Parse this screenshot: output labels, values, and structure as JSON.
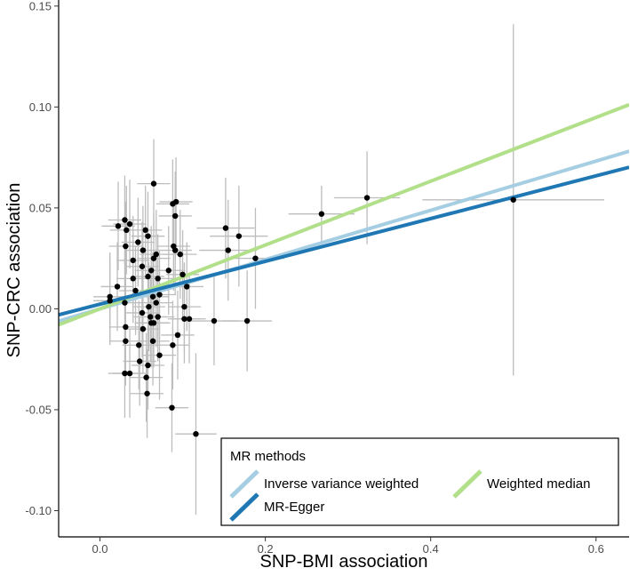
{
  "chart_data": {
    "type": "scatter",
    "xlabel": "SNP-BMI association",
    "ylabel": "SNP-CRC association",
    "xlim": [
      -0.05,
      0.64
    ],
    "ylim": [
      -0.113,
      0.153
    ],
    "x_ticks": [
      0.0,
      0.2,
      0.4,
      0.6
    ],
    "x_tick_labels": [
      "0.0",
      "0.2",
      "0.4",
      "0.6"
    ],
    "y_ticks": [
      -0.1,
      -0.05,
      0.0,
      0.05,
      0.1,
      0.15
    ],
    "y_tick_labels": [
      "-0.10",
      "-0.05",
      "0.00",
      "0.05",
      "0.10",
      "0.15"
    ],
    "grid": false,
    "legend": {
      "title": "MR methods",
      "placement": "bottom-right",
      "entries": [
        {
          "label": "Inverse variance weighted",
          "color": "#a6cee3"
        },
        {
          "label": "Weighted median",
          "color": "#b2df8a"
        },
        {
          "label": "MR-Egger",
          "color": "#1f78b4"
        }
      ]
    },
    "lines": [
      {
        "name": "Inverse variance weighted",
        "color": "#a6cee3",
        "intercept": 0.0,
        "slope": 0.122
      },
      {
        "name": "Weighted median",
        "color": "#b2df8a",
        "intercept": 0.0,
        "slope": 0.158
      },
      {
        "name": "MR-Egger",
        "color": "#1f78b4",
        "intercept": 0.0023,
        "slope": 0.106
      }
    ],
    "point_color": "#000000",
    "errorbar_color": "#bdbdbd",
    "points": [
      {
        "x": 0.065,
        "y": 0.062,
        "xe": 0.02,
        "ye": 0.022
      },
      {
        "x": 0.092,
        "y": 0.053,
        "xe": 0.02,
        "ye": 0.022
      },
      {
        "x": 0.088,
        "y": 0.052,
        "xe": 0.02,
        "ye": 0.022
      },
      {
        "x": 0.091,
        "y": 0.046,
        "xe": 0.02,
        "ye": 0.022
      },
      {
        "x": 0.022,
        "y": 0.041,
        "xe": 0.02,
        "ye": 0.022
      },
      {
        "x": 0.03,
        "y": 0.044,
        "xe": 0.02,
        "ye": 0.022
      },
      {
        "x": 0.036,
        "y": 0.042,
        "xe": 0.02,
        "ye": 0.022
      },
      {
        "x": 0.032,
        "y": 0.039,
        "xe": 0.02,
        "ye": 0.022
      },
      {
        "x": 0.055,
        "y": 0.039,
        "xe": 0.02,
        "ye": 0.022
      },
      {
        "x": 0.058,
        "y": 0.036,
        "xe": 0.02,
        "ye": 0.022
      },
      {
        "x": 0.031,
        "y": 0.031,
        "xe": 0.02,
        "ye": 0.022
      },
      {
        "x": 0.046,
        "y": 0.033,
        "xe": 0.02,
        "ye": 0.022
      },
      {
        "x": 0.052,
        "y": 0.029,
        "xe": 0.02,
        "ye": 0.022
      },
      {
        "x": 0.089,
        "y": 0.031,
        "xe": 0.02,
        "ye": 0.022
      },
      {
        "x": 0.091,
        "y": 0.029,
        "xe": 0.02,
        "ye": 0.022
      },
      {
        "x": 0.068,
        "y": 0.027,
        "xe": 0.02,
        "ye": 0.022
      },
      {
        "x": 0.065,
        "y": 0.025,
        "xe": 0.02,
        "ye": 0.022
      },
      {
        "x": 0.097,
        "y": 0.027,
        "xe": 0.02,
        "ye": 0.022
      },
      {
        "x": 0.04,
        "y": 0.024,
        "xe": 0.02,
        "ye": 0.022
      },
      {
        "x": 0.051,
        "y": 0.021,
        "xe": 0.02,
        "ye": 0.022
      },
      {
        "x": 0.083,
        "y": 0.019,
        "xe": 0.02,
        "ye": 0.022
      },
      {
        "x": 0.062,
        "y": 0.019,
        "xe": 0.02,
        "ye": 0.022
      },
      {
        "x": 0.058,
        "y": 0.016,
        "xe": 0.02,
        "ye": 0.022
      },
      {
        "x": 0.1,
        "y": 0.017,
        "xe": 0.02,
        "ye": 0.022
      },
      {
        "x": 0.07,
        "y": 0.015,
        "xe": 0.02,
        "ye": 0.022
      },
      {
        "x": 0.04,
        "y": 0.015,
        "xe": 0.02,
        "ye": 0.022
      },
      {
        "x": 0.105,
        "y": 0.011,
        "xe": 0.02,
        "ye": 0.022
      },
      {
        "x": 0.021,
        "y": 0.011,
        "xe": 0.02,
        "ye": 0.022
      },
      {
        "x": 0.043,
        "y": 0.009,
        "xe": 0.02,
        "ye": 0.022
      },
      {
        "x": 0.072,
        "y": 0.007,
        "xe": 0.02,
        "ye": 0.022
      },
      {
        "x": 0.064,
        "y": 0.006,
        "xe": 0.02,
        "ye": 0.022
      },
      {
        "x": 0.012,
        "y": 0.006,
        "xe": 0.02,
        "ye": 0.022
      },
      {
        "x": 0.012,
        "y": 0.004,
        "xe": 0.02,
        "ye": 0.022
      },
      {
        "x": 0.068,
        "y": 0.003,
        "xe": 0.02,
        "ye": 0.022
      },
      {
        "x": 0.03,
        "y": 0.003,
        "xe": 0.02,
        "ye": 0.022
      },
      {
        "x": 0.059,
        "y": 0.001,
        "xe": 0.02,
        "ye": 0.022
      },
      {
        "x": 0.102,
        "y": 0.001,
        "xe": 0.02,
        "ye": 0.022
      },
      {
        "x": 0.051,
        "y": -0.002,
        "xe": 0.02,
        "ye": 0.022
      },
      {
        "x": 0.061,
        "y": -0.004,
        "xe": 0.02,
        "ye": 0.022
      },
      {
        "x": 0.07,
        "y": -0.004,
        "xe": 0.02,
        "ye": 0.022
      },
      {
        "x": 0.102,
        "y": -0.005,
        "xe": 0.02,
        "ye": 0.022
      },
      {
        "x": 0.108,
        "y": -0.005,
        "xe": 0.02,
        "ye": 0.022
      },
      {
        "x": 0.062,
        "y": -0.007,
        "xe": 0.02,
        "ye": 0.022
      },
      {
        "x": 0.065,
        "y": -0.007,
        "xe": 0.02,
        "ye": 0.022
      },
      {
        "x": 0.031,
        "y": -0.009,
        "xe": 0.02,
        "ye": 0.022
      },
      {
        "x": 0.052,
        "y": -0.01,
        "xe": 0.02,
        "ye": 0.022
      },
      {
        "x": 0.094,
        "y": -0.013,
        "xe": 0.02,
        "ye": 0.022
      },
      {
        "x": 0.031,
        "y": -0.016,
        "xe": 0.02,
        "ye": 0.022
      },
      {
        "x": 0.064,
        "y": -0.016,
        "xe": 0.02,
        "ye": 0.022
      },
      {
        "x": 0.047,
        "y": -0.018,
        "xe": 0.02,
        "ye": 0.022
      },
      {
        "x": 0.088,
        "y": -0.018,
        "xe": 0.02,
        "ye": 0.022
      },
      {
        "x": 0.072,
        "y": -0.023,
        "xe": 0.02,
        "ye": 0.022
      },
      {
        "x": 0.058,
        "y": -0.028,
        "xe": 0.02,
        "ye": 0.022
      },
      {
        "x": 0.048,
        "y": -0.026,
        "xe": 0.02,
        "ye": 0.022
      },
      {
        "x": 0.03,
        "y": -0.032,
        "xe": 0.02,
        "ye": 0.022
      },
      {
        "x": 0.036,
        "y": -0.032,
        "xe": 0.02,
        "ye": 0.022
      },
      {
        "x": 0.056,
        "y": -0.034,
        "xe": 0.02,
        "ye": 0.022
      },
      {
        "x": 0.057,
        "y": -0.042,
        "xe": 0.02,
        "ye": 0.022
      },
      {
        "x": 0.087,
        "y": -0.049,
        "xe": 0.02,
        "ye": 0.022
      },
      {
        "x": 0.116,
        "y": -0.062,
        "xe": 0.025,
        "ye": 0.04
      },
      {
        "x": 0.138,
        "y": -0.006,
        "xe": 0.03,
        "ye": 0.022
      },
      {
        "x": 0.152,
        "y": 0.04,
        "xe": 0.035,
        "ye": 0.025
      },
      {
        "x": 0.155,
        "y": 0.029,
        "xe": 0.035,
        "ye": 0.025
      },
      {
        "x": 0.168,
        "y": 0.036,
        "xe": 0.035,
        "ye": 0.025
      },
      {
        "x": 0.178,
        "y": -0.006,
        "xe": 0.03,
        "ye": 0.025
      },
      {
        "x": 0.188,
        "y": 0.025,
        "xe": 0.035,
        "ye": 0.025
      },
      {
        "x": 0.268,
        "y": 0.047,
        "xe": 0.04,
        "ye": 0.014
      },
      {
        "x": 0.323,
        "y": 0.055,
        "xe": 0.04,
        "ye": 0.023
      },
      {
        "x": 0.5,
        "y": 0.054,
        "xe": 0.11,
        "ye": 0.087
      }
    ]
  }
}
